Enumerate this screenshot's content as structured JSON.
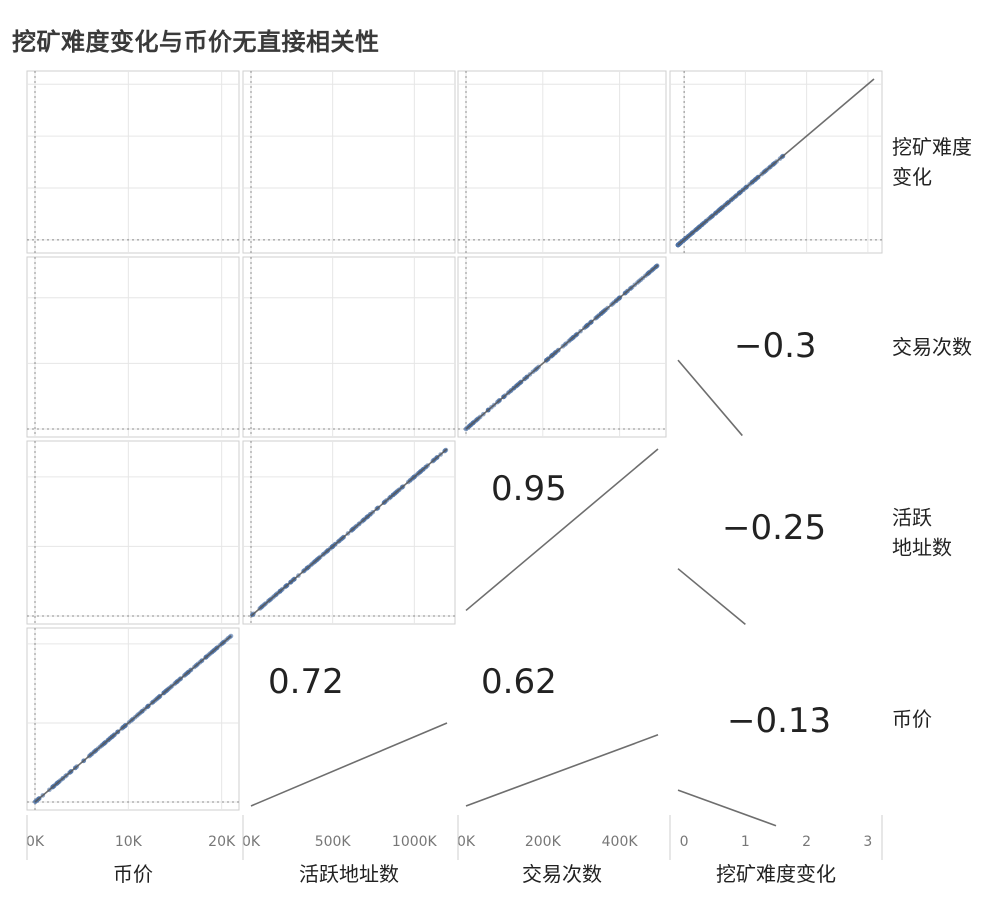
{
  "title": "挖矿难度变化与币价无直接相关性",
  "colors": {
    "point": "#4e73a8",
    "line": "#555555",
    "grid": "#e6e6e6",
    "frame": "#cfcfcf",
    "zero": "#888888"
  },
  "chart_data": {
    "type": "scatter",
    "matrix": "lower-triangle",
    "title": "挖矿难度变化与币价无直接相关性",
    "variables": [
      {
        "id": "price",
        "name": "币价",
        "row_label": "币价",
        "ticks": [
          "0K",
          "10K",
          "20K"
        ],
        "tick_values": [
          0,
          10000,
          20000
        ],
        "range": [
          0,
          21000
        ]
      },
      {
        "id": "addresses",
        "name": "活跃地址数",
        "row_label": [
          "活跃",
          "地址数"
        ],
        "ticks": [
          "0K",
          "500K",
          "1000K"
        ],
        "tick_values": [
          0,
          500000,
          1000000
        ],
        "range": [
          0,
          1200000
        ]
      },
      {
        "id": "tx",
        "name": "交易次数",
        "row_label": "交易次数",
        "ticks": [
          "0K",
          "200K",
          "400K"
        ],
        "tick_values": [
          0,
          200000,
          400000
        ],
        "range": [
          0,
          500000
        ]
      },
      {
        "id": "difficulty",
        "name": "挖矿难度变化",
        "row_label": [
          "挖矿难度",
          "变化"
        ],
        "ticks": [
          "0",
          "1",
          "2",
          "3"
        ],
        "tick_values": [
          0,
          1,
          2,
          3
        ],
        "range": [
          -0.1,
          3.1
        ]
      }
    ],
    "correlations": [
      {
        "x": "addresses",
        "y": "price",
        "label": "0.72"
      },
      {
        "x": "tx",
        "y": "price",
        "label": "0.62"
      },
      {
        "x": "difficulty",
        "y": "price",
        "label": "−0.13"
      },
      {
        "x": "tx",
        "y": "addresses",
        "label": "0.95"
      },
      {
        "x": "difficulty",
        "y": "addresses",
        "label": "−0.25"
      },
      {
        "x": "difficulty",
        "y": "tx",
        "label": "−0.3"
      }
    ],
    "trend_lines": [
      {
        "x": "price",
        "y": "price",
        "start": [
          0,
          0
        ],
        "end": [
          21000,
          21000
        ]
      },
      {
        "x": "addresses",
        "y": "addresses",
        "start": [
          0,
          0
        ],
        "end": [
          1200000,
          1200000
        ]
      },
      {
        "x": "tx",
        "y": "tx",
        "start": [
          0,
          0
        ],
        "end": [
          500000,
          500000
        ]
      },
      {
        "x": "difficulty",
        "y": "difficulty",
        "start": [
          -0.1,
          -0.1
        ],
        "end": [
          3.1,
          3.1
        ]
      },
      {
        "x": "addresses",
        "y": "price",
        "start": [
          0,
          -500
        ],
        "end": [
          1200000,
          10000
        ]
      },
      {
        "x": "tx",
        "y": "price",
        "start": [
          0,
          -500
        ],
        "end": [
          500000,
          8500
        ]
      },
      {
        "x": "difficulty",
        "y": "price",
        "start": [
          -0.1,
          1500
        ],
        "end": [
          1.5,
          -3000
        ]
      },
      {
        "x": "tx",
        "y": "addresses",
        "start": [
          0,
          40000
        ],
        "end": [
          500000,
          1200000
        ]
      },
      {
        "x": "difficulty",
        "y": "addresses",
        "start": [
          -0.1,
          340000
        ],
        "end": [
          1.0,
          -60000
        ]
      },
      {
        "x": "difficulty",
        "y": "tx",
        "start": [
          -0.1,
          210000
        ],
        "end": [
          0.95,
          -20000
        ]
      }
    ],
    "grid": true
  }
}
